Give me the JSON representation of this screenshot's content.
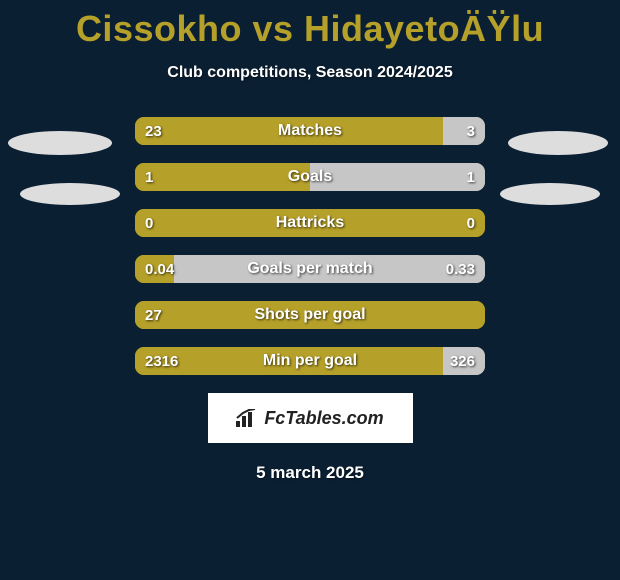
{
  "title": "Cissokho vs HidayetoÄŸlu",
  "subtitle": "Club competitions, Season 2024/2025",
  "date": "5 march 2025",
  "logo_text": "FcTables.com",
  "colors": {
    "background": "#0b1f33",
    "accent": "#b5a029",
    "bar_right": "#c6c6c6",
    "ellipse": "#dddddd",
    "text": "#ffffff"
  },
  "stats": [
    {
      "label": "Matches",
      "left_value": "23",
      "right_value": "3",
      "left_pct": 88,
      "right_pct": 12
    },
    {
      "label": "Goals",
      "left_value": "1",
      "right_value": "1",
      "left_pct": 50,
      "right_pct": 50
    },
    {
      "label": "Hattricks",
      "left_value": "0",
      "right_value": "0",
      "left_pct": 100,
      "right_pct": 0
    },
    {
      "label": "Goals per match",
      "left_value": "0.04",
      "right_value": "0.33",
      "left_pct": 11,
      "right_pct": 89
    },
    {
      "label": "Shots per goal",
      "left_value": "27",
      "right_value": "",
      "left_pct": 100,
      "right_pct": 0
    },
    {
      "label": "Min per goal",
      "left_value": "2316",
      "right_value": "326",
      "left_pct": 88,
      "right_pct": 12
    }
  ]
}
